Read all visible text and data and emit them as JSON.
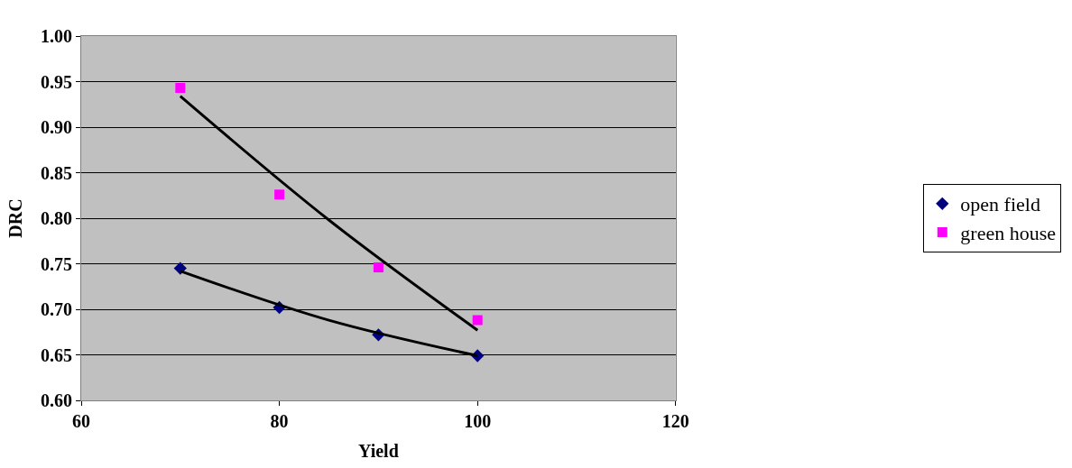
{
  "chart_data": {
    "type": "scatter",
    "xlabel": "Yield",
    "ylabel": "DRC",
    "x": [
      70,
      80,
      90,
      100
    ],
    "series": [
      {
        "name": "open field",
        "color": "#000080",
        "values": [
          0.745,
          0.702,
          0.672,
          0.649
        ],
        "marker": "diamond"
      },
      {
        "name": "green house",
        "color": "#ff00ff",
        "values": [
          0.943,
          0.826,
          0.746,
          0.688
        ],
        "marker": "square"
      },
      {
        "type": "line",
        "color": "#000000",
        "x": [
          70,
          85,
          100
        ],
        "values": [
          0.742,
          0.688,
          0.649
        ]
      },
      {
        "type": "line",
        "color": "#000000",
        "x": [
          70,
          85,
          100
        ],
        "values": [
          0.934,
          0.798,
          0.677
        ]
      }
    ],
    "xlim": [
      60,
      120
    ],
    "xticks": [
      60,
      80,
      100,
      120
    ],
    "ylim": [
      0.6,
      1.0
    ],
    "yticks": [
      {
        "value": 0.6,
        "label": "0.60"
      },
      {
        "value": 0.65,
        "label": "0.65"
      },
      {
        "value": 0.7,
        "label": "0.70"
      },
      {
        "value": 0.75,
        "label": "0.75"
      },
      {
        "value": 0.8,
        "label": "0.80"
      },
      {
        "value": 0.85,
        "label": "0.85"
      },
      {
        "value": 0.9,
        "label": "0.90"
      },
      {
        "value": 0.95,
        "label": "0.95"
      },
      {
        "value": 1.0,
        "label": "1.00"
      }
    ],
    "grid": "y",
    "legend": "right"
  }
}
